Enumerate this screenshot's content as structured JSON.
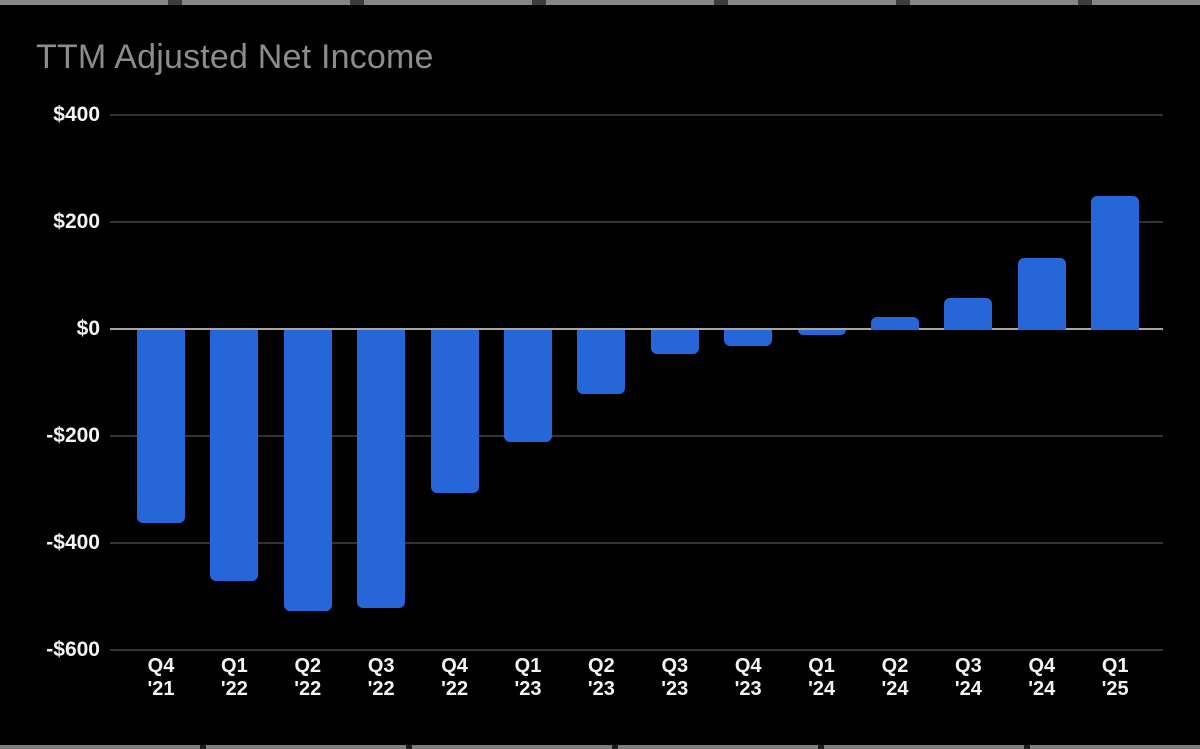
{
  "page": {
    "background": "#010101"
  },
  "chart_data": {
    "type": "bar",
    "title": "TTM Adjusted Net Income",
    "categories": [
      "Q4 '21",
      "Q1 '22",
      "Q2 '22",
      "Q3 '22",
      "Q4 '22",
      "Q1 '23",
      "Q2 '23",
      "Q3 '23",
      "Q4 '23",
      "Q1 '24",
      "Q2 '24",
      "Q3 '24",
      "Q4 '24",
      "Q1 '25"
    ],
    "values": [
      -360,
      -470,
      -525,
      -520,
      -305,
      -210,
      -120,
      -45,
      -30,
      -10,
      25,
      60,
      135,
      250
    ],
    "xlabel": "",
    "ylabel": "",
    "ylim": [
      -600,
      400
    ],
    "y_ticks": [
      400,
      200,
      0,
      -200,
      -400,
      -600
    ],
    "y_tick_labels": [
      "$400",
      "$200",
      "$0",
      "-$200",
      "-$400",
      "-$600"
    ],
    "grid": true,
    "legend": null,
    "colors": {
      "bar": "#2766d8",
      "title": "#8c8c90",
      "axis_text": "#f4f4f4",
      "gridline": "#333335",
      "zero_line": "#aba59c",
      "background": "#010101"
    }
  }
}
